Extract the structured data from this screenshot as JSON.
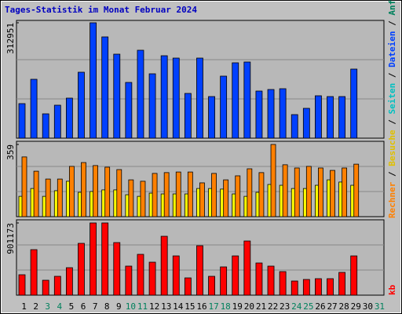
{
  "chart_data": [
    {
      "type": "bar",
      "title": "Tages-Statistik im Monat Februar 2024",
      "ylim": [
        0,
        312951
      ],
      "yticks": [
        312951
      ],
      "series": [
        {
          "color": "#0040ff",
          "values": [
            93673,
            159668,
            66000,
            89415,
            108575,
            178829,
            312951,
            274630,
            227793,
            151153,
            238441,
            174571,
            223535,
            217150,
            121349,
            217150,
            112833,
            168185,
            204376,
            206505,
            127735,
            131993,
            134122,
            63867,
            80898,
            114962,
            112833,
            112833,
            187345,
            null,
            null
          ]
        }
      ]
    },
    {
      "type": "bar",
      "ylim": [
        0,
        359
      ],
      "yticks": [
        359
      ],
      "series": [
        {
          "color": "#ffff00",
          "values": [
            101,
            140,
            101,
            129,
            176,
            121,
            125,
            133,
            133,
            109,
            101,
            117,
            113,
            113,
            113,
            140,
            140,
            137,
            113,
            101,
            121,
            160,
            156,
            140,
            140,
            156,
            183,
            172,
            156,
            null,
            null
          ]
        },
        {
          "color": "#ff8000",
          "values": [
            297,
            226,
            187,
            187,
            250,
            269,
            254,
            246,
            234,
            183,
            176,
            215,
            219,
            222,
            222,
            168,
            215,
            183,
            203,
            238,
            219,
            359,
            258,
            242,
            250,
            242,
            230,
            242,
            261,
            null,
            null
          ]
        }
      ]
    },
    {
      "type": "bar",
      "ylim": [
        0,
        901173
      ],
      "yticks": [
        901173
      ],
      "categories": [
        "1",
        "2",
        "3",
        "4",
        "5",
        "6",
        "7",
        "8",
        "9",
        "10",
        "11",
        "12",
        "13",
        "14",
        "15",
        "16",
        "17",
        "18",
        "19",
        "20",
        "21",
        "22",
        "23",
        "24",
        "25",
        "26",
        "27",
        "28",
        "29",
        "30",
        "31"
      ],
      "category_colors": [
        "#000000",
        "#000000",
        "#00805c",
        "#00805c",
        "#000000",
        "#000000",
        "#000000",
        "#000000",
        "#000000",
        "#00805c",
        "#00805c",
        "#000000",
        "#000000",
        "#000000",
        "#000000",
        "#000000",
        "#00805c",
        "#00805c",
        "#000000",
        "#000000",
        "#000000",
        "#000000",
        "#000000",
        "#00805c",
        "#00805c",
        "#000000",
        "#000000",
        "#000000",
        "#000000",
        "#000000",
        "#00805c"
      ],
      "series": [
        {
          "color": "#ff0000",
          "values": [
            254680,
            568133,
            186113,
            235090,
            342839,
            646496,
            901173,
            901173,
            656292,
            362430,
            509361,
            411407,
            734652,
            489770,
            215499,
            617110,
            235090,
            352634,
            489770,
            675883,
            401611,
            362430,
            293862,
            176317,
            195908,
            205703,
            205703,
            284067,
            489770,
            null,
            null
          ]
        }
      ]
    }
  ],
  "legend": [
    {
      "text": "kb",
      "color": "#ff0000"
    },
    {
      "text": "Rechner",
      "color": "#ff8000"
    },
    {
      "text": " / ",
      "color": "#000000"
    },
    {
      "text": "Besuche",
      "color": "#e0c000"
    },
    {
      "text": " / ",
      "color": "#000000"
    },
    {
      "text": "Seiten",
      "color": "#00c0c0"
    },
    {
      "text": " / ",
      "color": "#000000"
    },
    {
      "text": "Dateien",
      "color": "#0040ff"
    },
    {
      "text": " / ",
      "color": "#000000"
    },
    {
      "text": "Anfragen",
      "color": "#00805c"
    }
  ]
}
